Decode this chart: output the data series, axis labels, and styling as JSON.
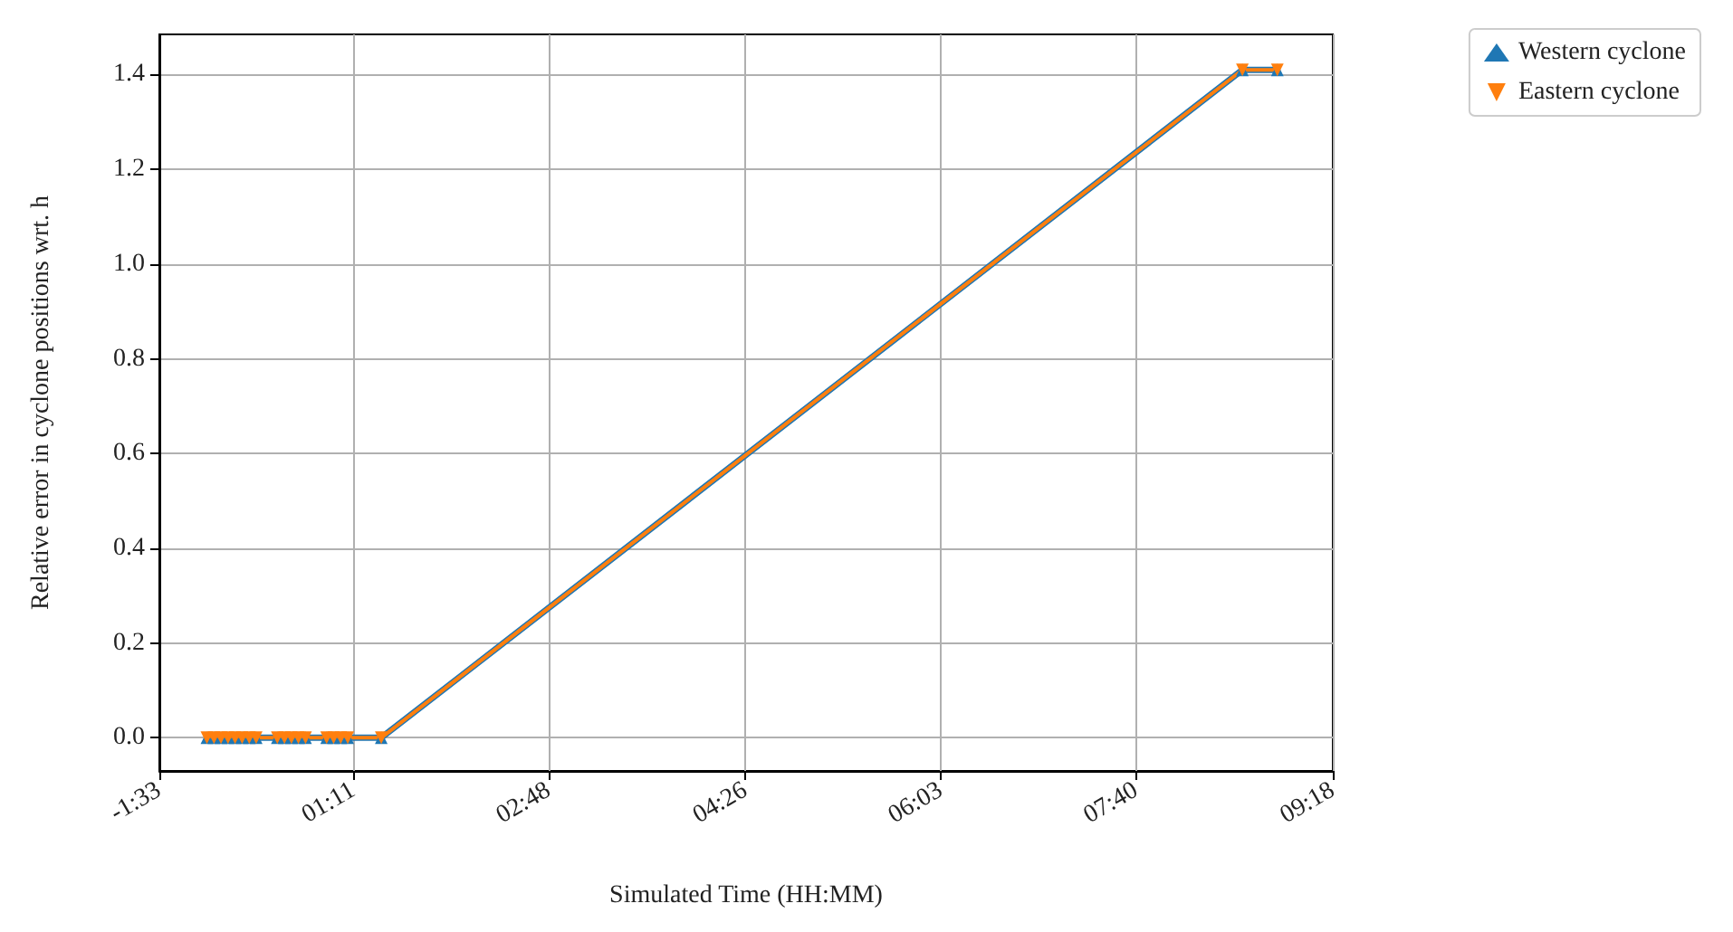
{
  "chart_data": {
    "type": "line",
    "xlabel": "Simulated Time (HH:MM)",
    "ylabel": "Relative error in cyclone positions wrt. h",
    "x": [
      -0.036,
      0.023,
      0.081,
      0.139,
      0.198,
      0.256,
      0.315,
      0.373,
      0.548,
      0.607,
      0.665,
      0.723,
      0.782,
      0.957,
      1.015,
      1.074,
      1.132,
      1.41,
      8.55,
      8.84
    ],
    "series": [
      {
        "name": "Western cyclone",
        "color": "#1f77b4",
        "marker": "triangle",
        "values": [
          0,
          0,
          0,
          0,
          0,
          0,
          0,
          0,
          0,
          0,
          0,
          0,
          0,
          0,
          0,
          0,
          0,
          0,
          1.41,
          1.41
        ]
      },
      {
        "name": "Eastern cyclone",
        "color": "#ff7f0e",
        "marker": "triangle-down",
        "values": [
          0,
          0,
          0,
          0,
          0,
          0,
          0,
          0,
          0,
          0,
          0,
          0,
          0,
          0,
          0,
          0,
          0,
          0,
          1.41,
          1.41
        ]
      }
    ],
    "xlim": [
      -0.43,
      9.3
    ],
    "xticks": [
      {
        "value": -0.43,
        "label": "-1:33"
      },
      {
        "value": 1.18,
        "label": "01:11"
      },
      {
        "value": 2.8,
        "label": "02:48"
      },
      {
        "value": 4.43,
        "label": "04:26"
      },
      {
        "value": 6.05,
        "label": "06:03"
      },
      {
        "value": 7.67,
        "label": "07:40"
      },
      {
        "value": 9.3,
        "label": "09:18"
      }
    ],
    "ylim": [
      -0.07,
      1.485
    ],
    "yticks": [
      {
        "value": 0,
        "label": "0.0"
      },
      {
        "value": 0.2,
        "label": "0.2"
      },
      {
        "value": 0.4,
        "label": "0.4"
      },
      {
        "value": 0.6,
        "label": "0.6"
      },
      {
        "value": 0.8,
        "label": "0.8"
      },
      {
        "value": 1.0,
        "label": "1.0"
      },
      {
        "value": 1.2,
        "label": "1.2"
      },
      {
        "value": 1.4,
        "label": "1.4"
      }
    ],
    "grid": true,
    "legend": "top right"
  }
}
